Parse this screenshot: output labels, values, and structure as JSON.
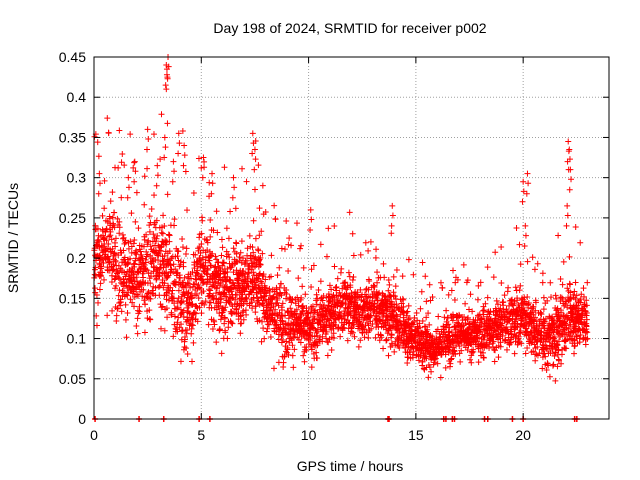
{
  "chart_data": {
    "type": "scatter",
    "title": "Day 198 of 2024, SRMTID for receiver p002",
    "xlabel": "GPS time / hours",
    "ylabel": "SRMTID / TECUs",
    "xlim": [
      0,
      24
    ],
    "ylim": [
      0,
      0.45
    ],
    "xticks": [
      0,
      5,
      10,
      15,
      20
    ],
    "yticks": [
      0,
      0.05,
      0.1,
      0.15,
      0.2,
      0.25,
      0.3,
      0.35,
      0.4,
      0.45
    ],
    "xtick_labels": [
      "0",
      "5",
      "10",
      "15",
      "20"
    ],
    "ytick_labels": [
      "0",
      "0.05",
      "0.1",
      "0.15",
      "0.2",
      "0.25",
      "0.3",
      "0.35",
      "0.4",
      "0.45"
    ],
    "grid": true,
    "marker": "+",
    "color": "#ff0000",
    "sample_interval_hours": 0.0125,
    "x_end_hours": 23,
    "trend": {
      "x": [
        0,
        0.5,
        1,
        1.5,
        2,
        2.5,
        3,
        3.5,
        4,
        4.5,
        5,
        5.5,
        6,
        6.5,
        7,
        7.5,
        8,
        8.5,
        9,
        9.5,
        10,
        10.5,
        11,
        11.5,
        12,
        12.5,
        13,
        13.5,
        14,
        14.5,
        15,
        15.5,
        16,
        16.5,
        17,
        17.5,
        18,
        18.5,
        19,
        19.5,
        20,
        20.5,
        21,
        21.5,
        22,
        22.5,
        23
      ],
      "y": [
        0.19,
        0.22,
        0.2,
        0.18,
        0.17,
        0.19,
        0.2,
        0.18,
        0.15,
        0.14,
        0.19,
        0.17,
        0.15,
        0.16,
        0.17,
        0.18,
        0.15,
        0.13,
        0.12,
        0.12,
        0.11,
        0.12,
        0.13,
        0.14,
        0.14,
        0.13,
        0.14,
        0.13,
        0.12,
        0.11,
        0.1,
        0.09,
        0.09,
        0.1,
        0.11,
        0.1,
        0.11,
        0.11,
        0.12,
        0.12,
        0.13,
        0.11,
        0.1,
        0.1,
        0.12,
        0.13,
        0.12
      ]
    },
    "spread": {
      "x": [
        0,
        2,
        4,
        6,
        8,
        10,
        12,
        14,
        16,
        18,
        20,
        22,
        23
      ],
      "y": [
        0.045,
        0.05,
        0.055,
        0.045,
        0.04,
        0.032,
        0.03,
        0.03,
        0.022,
        0.025,
        0.03,
        0.035,
        0.03
      ]
    },
    "spikes": [
      {
        "x": 0.25,
        "y": 0.305
      },
      {
        "x": 1.6,
        "y": 0.3
      },
      {
        "x": 1.9,
        "y": 0.32
      },
      {
        "x": 2.5,
        "y": 0.36
      },
      {
        "x": 2.95,
        "y": 0.315
      },
      {
        "x": 3.3,
        "y": 0.35
      },
      {
        "x": 3.37,
        "y": 0.44
      },
      {
        "x": 3.4,
        "y": 0.435
      },
      {
        "x": 3.45,
        "y": 0.45
      },
      {
        "x": 3.7,
        "y": 0.32
      },
      {
        "x": 3.95,
        "y": 0.355
      },
      {
        "x": 4.2,
        "y": 0.34
      },
      {
        "x": 5.1,
        "y": 0.325
      },
      {
        "x": 5.5,
        "y": 0.305
      },
      {
        "x": 6.5,
        "y": 0.3
      },
      {
        "x": 7.4,
        "y": 0.355
      },
      {
        "x": 7.5,
        "y": 0.335
      },
      {
        "x": 10.1,
        "y": 0.26
      },
      {
        "x": 13.9,
        "y": 0.265
      },
      {
        "x": 20.0,
        "y": 0.295
      },
      {
        "x": 20.2,
        "y": 0.305
      },
      {
        "x": 20.1,
        "y": 0.24
      },
      {
        "x": 22.1,
        "y": 0.345
      },
      {
        "x": 22.15,
        "y": 0.335
      },
      {
        "x": 22.2,
        "y": 0.31
      },
      {
        "x": 22.05,
        "y": 0.265
      }
    ],
    "zero_markers": [
      0.05,
      2.1,
      3.25,
      4.9,
      5.4,
      13.7,
      13.75,
      16.3,
      16.4,
      16.7,
      16.8,
      18.2,
      18.35,
      19.5,
      20.0,
      22.4,
      22.5
    ]
  }
}
